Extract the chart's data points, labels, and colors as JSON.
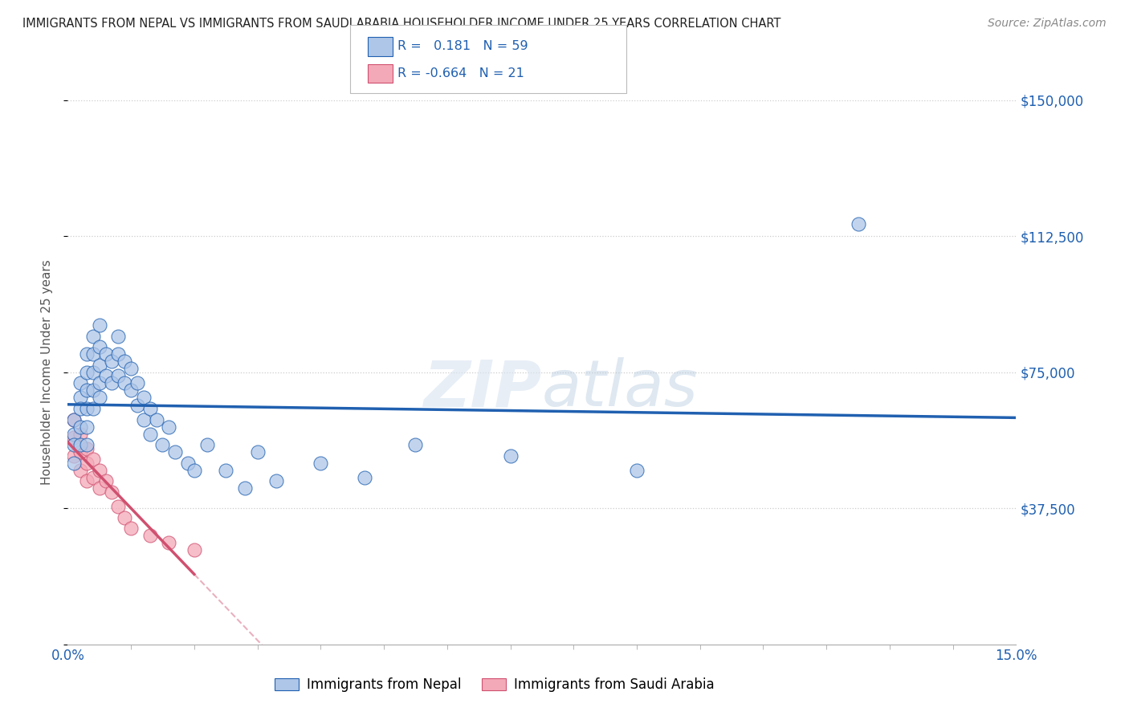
{
  "title": "IMMIGRANTS FROM NEPAL VS IMMIGRANTS FROM SAUDI ARABIA HOUSEHOLDER INCOME UNDER 25 YEARS CORRELATION CHART",
  "source": "Source: ZipAtlas.com",
  "ylabel": "Householder Income Under 25 years",
  "xlim": [
    0.0,
    0.15
  ],
  "ylim": [
    0,
    150000
  ],
  "yticks": [
    0,
    37500,
    75000,
    112500,
    150000
  ],
  "ytick_labels": [
    "",
    "$37,500",
    "$75,000",
    "$112,500",
    "$150,000"
  ],
  "nepal_R": 0.181,
  "nepal_N": 59,
  "saudi_R": -0.664,
  "saudi_N": 21,
  "nepal_color": "#aec6e8",
  "saudi_color": "#f4a9b8",
  "nepal_line_color": "#2060b0",
  "saudi_line_color": "#d05070",
  "watermark": "ZIPatlas",
  "nepal_x": [
    0.001,
    0.001,
    0.001,
    0.001,
    0.002,
    0.002,
    0.002,
    0.002,
    0.002,
    0.003,
    0.003,
    0.003,
    0.003,
    0.003,
    0.003,
    0.004,
    0.004,
    0.004,
    0.004,
    0.004,
    0.005,
    0.005,
    0.005,
    0.005,
    0.005,
    0.006,
    0.006,
    0.007,
    0.007,
    0.008,
    0.008,
    0.008,
    0.009,
    0.009,
    0.01,
    0.01,
    0.011,
    0.011,
    0.012,
    0.012,
    0.013,
    0.013,
    0.014,
    0.015,
    0.016,
    0.017,
    0.019,
    0.02,
    0.022,
    0.025,
    0.028,
    0.03,
    0.033,
    0.04,
    0.047,
    0.055,
    0.07,
    0.09,
    0.125
  ],
  "nepal_y": [
    62000,
    58000,
    55000,
    50000,
    68000,
    72000,
    65000,
    60000,
    55000,
    80000,
    75000,
    70000,
    65000,
    60000,
    55000,
    85000,
    80000,
    75000,
    70000,
    65000,
    88000,
    82000,
    77000,
    72000,
    68000,
    80000,
    74000,
    78000,
    72000,
    85000,
    80000,
    74000,
    78000,
    72000,
    76000,
    70000,
    72000,
    66000,
    68000,
    62000,
    65000,
    58000,
    62000,
    55000,
    60000,
    53000,
    50000,
    48000,
    55000,
    48000,
    43000,
    53000,
    45000,
    50000,
    46000,
    55000,
    52000,
    48000,
    116000
  ],
  "saudi_x": [
    0.001,
    0.001,
    0.001,
    0.002,
    0.002,
    0.002,
    0.003,
    0.003,
    0.003,
    0.004,
    0.004,
    0.005,
    0.005,
    0.006,
    0.007,
    0.008,
    0.009,
    0.01,
    0.013,
    0.016,
    0.02
  ],
  "saudi_y": [
    62000,
    57000,
    52000,
    58000,
    53000,
    48000,
    54000,
    50000,
    45000,
    51000,
    46000,
    48000,
    43000,
    45000,
    42000,
    38000,
    35000,
    32000,
    30000,
    28000,
    26000
  ],
  "background_color": "#ffffff",
  "grid_color": "#cccccc",
  "title_color": "#333333",
  "tick_color": "#2060b0"
}
